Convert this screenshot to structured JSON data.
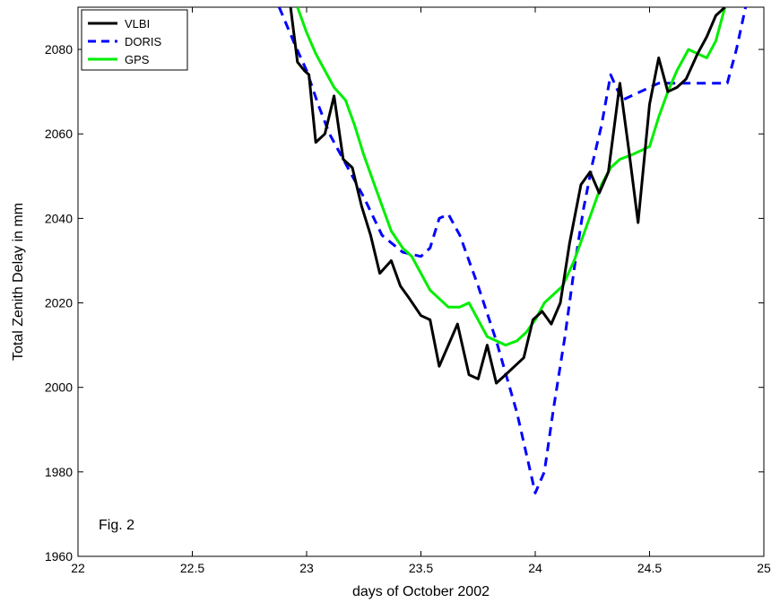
{
  "chart_data": {
    "type": "line",
    "title": "",
    "xlabel": "days of October 2002",
    "ylabel": "Total Zenith Delay in mm",
    "xlim": [
      22,
      25
    ],
    "ylim": [
      1960,
      2090
    ],
    "xticks": [
      22,
      22.5,
      23,
      23.5,
      24,
      24.5,
      25
    ],
    "xtick_labels": [
      "22",
      "22.5",
      "23",
      "23.5",
      "24",
      "24.5",
      "25"
    ],
    "yticks": [
      1960,
      1980,
      2000,
      2020,
      2040,
      2060,
      2080
    ],
    "ytick_labels": [
      "1960",
      "1980",
      "2000",
      "2020",
      "2040",
      "2060",
      "2080"
    ],
    "grid": false,
    "legend_position": "top-left",
    "annotation": "Fig. 2",
    "series": [
      {
        "name": "VLBI",
        "color": "#000000",
        "dash": "solid",
        "x": [
          22.93,
          22.96,
          22.99,
          23.01,
          23.04,
          23.08,
          23.12,
          23.16,
          23.2,
          23.24,
          23.28,
          23.32,
          23.37,
          23.41,
          23.45,
          23.5,
          23.54,
          23.58,
          23.62,
          23.66,
          23.71,
          23.75,
          23.79,
          23.83,
          23.87,
          23.91,
          23.95,
          23.99,
          24.03,
          24.07,
          24.11,
          24.15,
          24.2,
          24.24,
          24.28,
          24.32,
          24.37,
          24.41,
          24.45,
          24.5,
          24.54,
          24.58,
          24.62,
          24.66,
          24.71,
          24.75,
          24.79,
          24.83
        ],
        "y": [
          2090,
          2077,
          2075,
          2074,
          2058,
          2060,
          2069,
          2054,
          2052,
          2043,
          2036,
          2027,
          2030,
          2024,
          2021,
          2017,
          2016,
          2005,
          2010,
          2015,
          2003,
          2002,
          2010,
          2001,
          2003,
          2005,
          2007,
          2016,
          2018,
          2015,
          2020,
          2034,
          2048,
          2051,
          2046,
          2051,
          2072,
          2056,
          2039,
          2067,
          2078,
          2070,
          2071,
          2073,
          2079,
          2083,
          2088,
          2090
        ]
      },
      {
        "name": "DORIS",
        "color": "#0000ff",
        "dash": "dashed",
        "x": [
          22.88,
          22.95,
          23.0,
          23.05,
          23.1,
          23.17,
          23.25,
          23.33,
          23.42,
          23.5,
          23.54,
          23.58,
          23.62,
          23.67,
          23.75,
          23.83,
          23.92,
          24.0,
          24.04,
          24.08,
          24.13,
          24.17,
          24.21,
          24.25,
          24.29,
          24.33,
          24.38,
          24.46,
          24.54,
          24.62,
          24.71,
          24.79,
          24.84,
          24.88,
          24.92
        ],
        "y": [
          2090,
          2081,
          2075,
          2067,
          2060,
          2053,
          2045,
          2036,
          2032,
          2031,
          2033,
          2040,
          2041,
          2036,
          2024,
          2011,
          1994,
          1975,
          1980,
          1995,
          2012,
          2028,
          2042,
          2053,
          2062,
          2074,
          2068,
          2070,
          2072,
          2072,
          2072,
          2072,
          2072,
          2080,
          2090
        ]
      },
      {
        "name": "GPS",
        "color": "#00ee00",
        "dash": "solid",
        "x": [
          22.96,
          23.0,
          23.04,
          23.08,
          23.12,
          23.17,
          23.21,
          23.25,
          23.29,
          23.33,
          23.37,
          23.42,
          23.46,
          23.5,
          23.54,
          23.58,
          23.62,
          23.67,
          23.71,
          23.75,
          23.79,
          23.83,
          23.87,
          23.92,
          23.96,
          24.0,
          24.04,
          24.08,
          24.12,
          24.17,
          24.21,
          24.25,
          24.29,
          24.33,
          24.37,
          24.42,
          24.46,
          24.5,
          24.54,
          24.58,
          24.62,
          24.67,
          24.71,
          24.75,
          24.79,
          24.83
        ],
        "y": [
          2090,
          2084,
          2079,
          2075,
          2071,
          2068,
          2062,
          2055,
          2049,
          2043,
          2037,
          2033,
          2031,
          2027,
          2023,
          2021,
          2019,
          2019,
          2020,
          2016,
          2012,
          2011,
          2010,
          2011,
          2013,
          2016,
          2020,
          2022,
          2024,
          2030,
          2036,
          2042,
          2048,
          2052,
          2054,
          2055,
          2056,
          2057,
          2064,
          2070,
          2075,
          2080,
          2079,
          2078,
          2082,
          2090
        ]
      }
    ]
  }
}
